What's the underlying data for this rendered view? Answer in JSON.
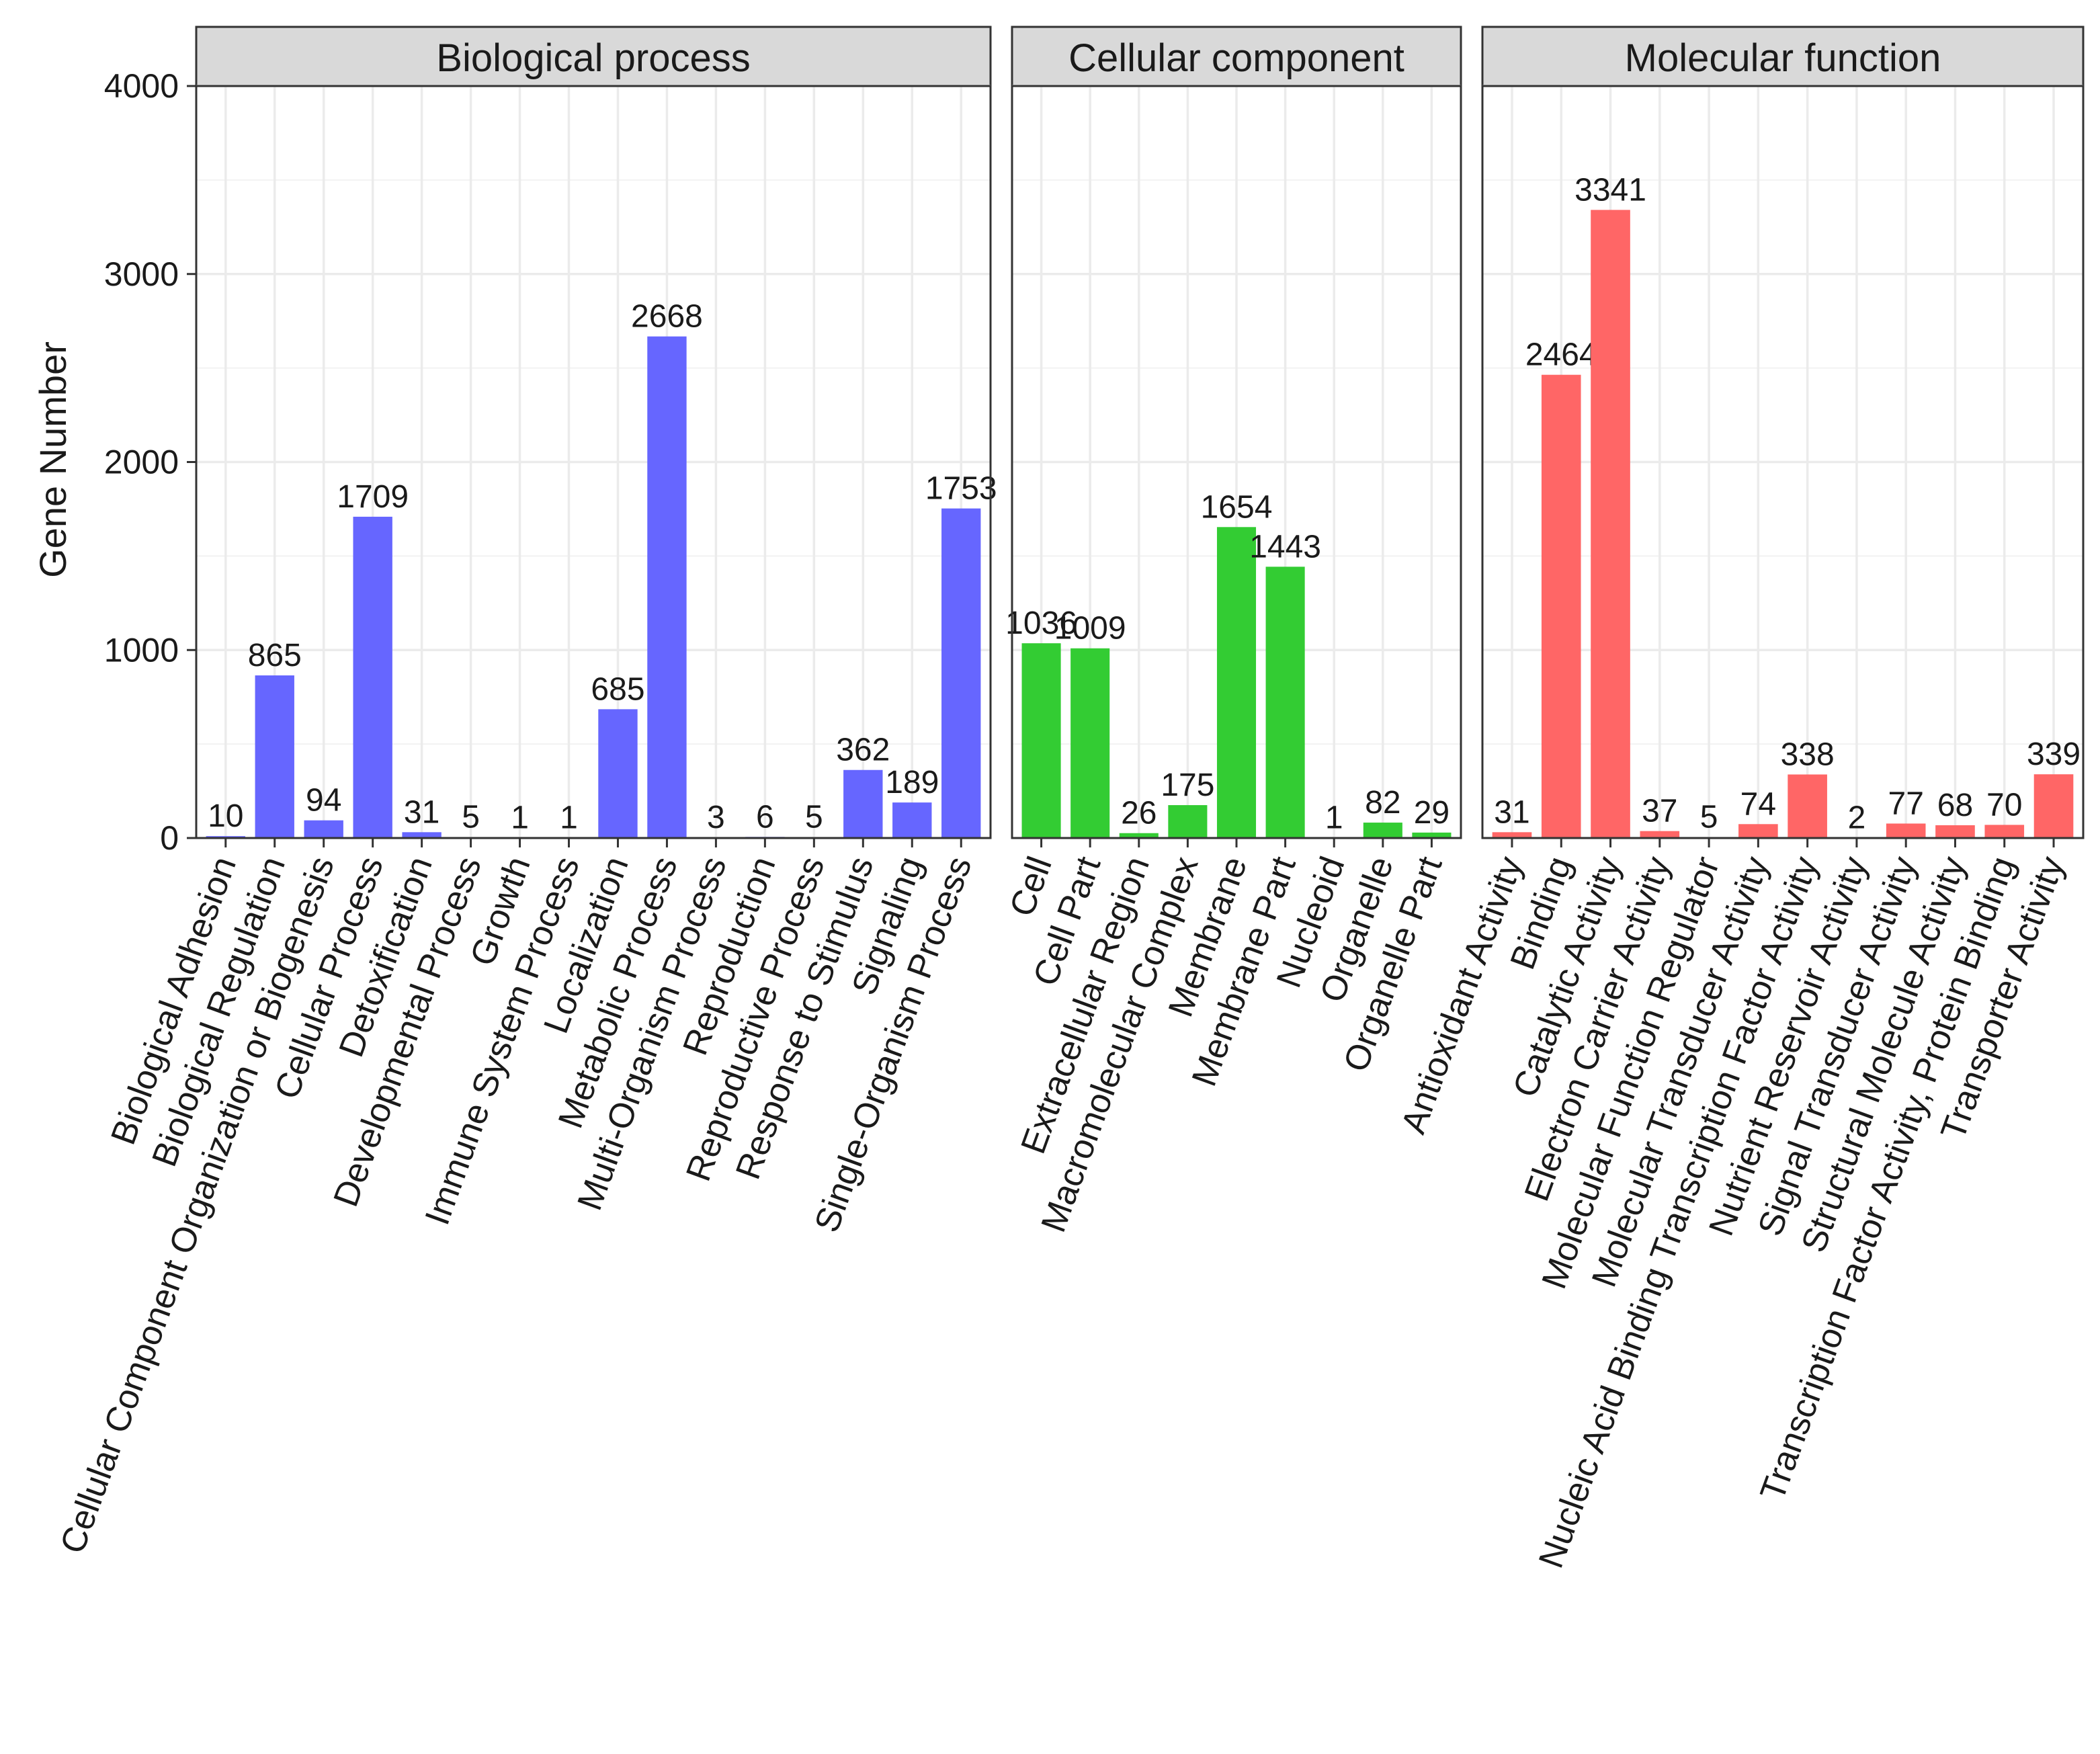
{
  "chart_data": {
    "type": "bar",
    "title": "",
    "xlabel": "",
    "ylabel": "Gene  Number",
    "ylim": [
      0,
      4000
    ],
    "yticks": [
      0,
      1000,
      2000,
      3000,
      4000
    ],
    "grid": true,
    "legend": "none",
    "facets": [
      {
        "name": "Biological process",
        "color": "#6666ff",
        "categories": [
          "Biological Adhesion",
          "Biological Regulation",
          "Cellular Component Organization  or Biogenesis",
          "Cellular Process",
          "Detoxification",
          "Developmental Process",
          "Growth",
          "Immune System Process",
          "Localization",
          "Metabolic Process",
          "Multi-Organism Process",
          "Reproduction",
          "Reproductive Process",
          "Response  to Stimulus",
          "Signaling",
          "Single-Organism Process"
        ],
        "values": [
          10,
          865,
          94,
          1709,
          31,
          5,
          1,
          1,
          685,
          2668,
          3,
          6,
          5,
          362,
          189,
          1753
        ]
      },
      {
        "name": "Cellular component",
        "color": "#33cc33",
        "categories": [
          "Cell",
          "Cell Part",
          "Extracellular Region",
          "Macromolecular Complex",
          "Membrane",
          "Membrane Part",
          "Nucleoid",
          "Organelle",
          "Organelle Part"
        ],
        "values": [
          1036,
          1009,
          26,
          175,
          1654,
          1443,
          1,
          82,
          29
        ]
      },
      {
        "name": "Molecular function",
        "color": "#ff6666",
        "categories": [
          "Antioxidant Activity",
          "Binding",
          "Catalytic Activity",
          "Electron Carrier Activity",
          "Molecular Function Regulator",
          "Molecular Transducer Activity",
          "Nucleic Acid Binding Transcription Factor Activity",
          "Nutrient Reservoir Activity",
          "Signal Transducer Activity",
          "Structural Molecule Activity",
          "Transcription Factor Activity, Protein Binding",
          "Transporter Activity"
        ],
        "values": [
          31,
          2464,
          3341,
          37,
          5,
          74,
          338,
          2,
          77,
          68,
          70,
          339
        ]
      }
    ]
  }
}
